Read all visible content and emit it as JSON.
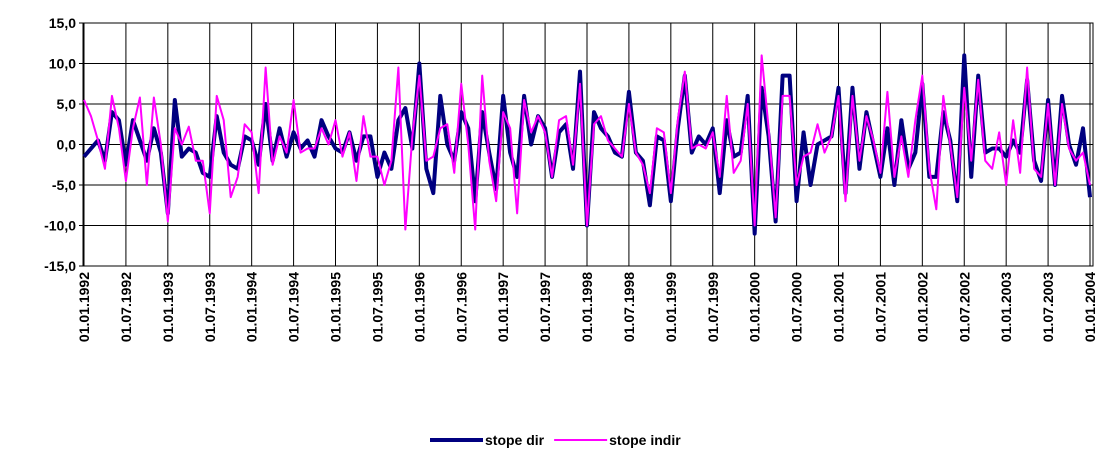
{
  "chart_data": {
    "type": "line",
    "categories": [
      "01.01.1992",
      null,
      null,
      null,
      null,
      null,
      "01.07.1992",
      null,
      null,
      null,
      null,
      null,
      "01.01.1993",
      null,
      null,
      null,
      null,
      null,
      "01.07.1993",
      null,
      null,
      null,
      null,
      null,
      "01.01.1994",
      null,
      null,
      null,
      null,
      null,
      "01.07.1994",
      null,
      null,
      null,
      null,
      null,
      "01.01.1995",
      null,
      null,
      null,
      null,
      null,
      "01.07.1995",
      null,
      null,
      null,
      null,
      null,
      "01.01.1996",
      null,
      null,
      null,
      null,
      null,
      "01.07.1996",
      null,
      null,
      null,
      null,
      null,
      "01.01.1997",
      null,
      null,
      null,
      null,
      null,
      "01.07.1997",
      null,
      null,
      null,
      null,
      null,
      "01.01.1998",
      null,
      null,
      null,
      null,
      null,
      "01.07.1998",
      null,
      null,
      null,
      null,
      null,
      "01.01.1999",
      null,
      null,
      null,
      null,
      null,
      "01.07.1999",
      null,
      null,
      null,
      null,
      null,
      "01.01.2000",
      null,
      null,
      null,
      null,
      null,
      "01.07.2000",
      null,
      null,
      null,
      null,
      null,
      "01.01.2001",
      null,
      null,
      null,
      null,
      null,
      "01.07.2001",
      null,
      null,
      null,
      null,
      null,
      "01.01.2002",
      null,
      null,
      null,
      null,
      null,
      "01.07.2002",
      null,
      null,
      null,
      null,
      null,
      "01.01.2003",
      null,
      null,
      null,
      null,
      null,
      "01.07.2003",
      null,
      null,
      null,
      null,
      null,
      "01.01.2004"
    ],
    "series": [
      {
        "name": "stope dir",
        "color": "#000080",
        "values": [
          -1.5,
          -0.5,
          0.5,
          -2,
          4,
          3,
          -2.5,
          3,
          0.5,
          -2,
          2,
          -1,
          -8.5,
          5.5,
          -1.5,
          -0.5,
          -1,
          -3.5,
          -4,
          3.5,
          -1,
          -2.5,
          -3,
          1,
          0.5,
          -2.5,
          5,
          -2,
          2,
          -1.5,
          1.5,
          -0.5,
          0.5,
          -1.5,
          3,
          1,
          -0.5,
          -1,
          1.5,
          -2,
          1,
          1,
          -4,
          -1,
          -3,
          3,
          4.5,
          -0.5,
          10,
          -3,
          -6,
          6,
          0,
          -2,
          4,
          2,
          -7,
          4,
          -1,
          -5.5,
          6,
          -1,
          -4,
          6,
          0,
          3.5,
          2,
          -4,
          1.5,
          2.5,
          -3,
          9,
          -10,
          4,
          2,
          1,
          -1,
          -1.5,
          6.5,
          -1,
          -2,
          -7.5,
          1,
          0.5,
          -7,
          2,
          8.5,
          -1,
          1,
          0,
          2,
          -6,
          3,
          -1.5,
          -1,
          6,
          -11,
          7,
          1,
          -9.5,
          8.5,
          8.5,
          -7,
          1.5,
          -5,
          0,
          0.5,
          1,
          7,
          -6,
          7,
          -3,
          4,
          0,
          -4,
          2,
          -5,
          3,
          -3,
          -1,
          7.5,
          -4,
          -4,
          4,
          0.5,
          -7,
          11,
          -4,
          8.5,
          -1,
          -0.5,
          -0.5,
          -1.5,
          0.5,
          -1,
          8,
          -2,
          -4.5,
          5.5,
          -5,
          6,
          0,
          -2.5,
          2,
          -6.5
        ]
      },
      {
        "name": "stope indir",
        "color": "#ff00ff",
        "values": [
          5.5,
          3.5,
          0.5,
          -3,
          6,
          2,
          -4.5,
          2,
          5.8,
          -5,
          5.8,
          0,
          -9.5,
          2,
          0,
          2.2,
          -2,
          -2,
          -8.5,
          6,
          3,
          -6.5,
          -4,
          2.5,
          1.5,
          -6,
          9.5,
          -2.5,
          1,
          -1,
          5.5,
          -1,
          -0.5,
          -0.5,
          2,
          0,
          3,
          -1.5,
          1.5,
          -4.5,
          3.5,
          -1.5,
          -1.5,
          -5,
          -2,
          9.5,
          -10.5,
          1,
          8.5,
          -2,
          -1.5,
          2,
          2.5,
          -3.5,
          7.5,
          0,
          -10.5,
          8.5,
          -2,
          -7,
          4,
          2,
          -8.5,
          5.5,
          1.5,
          3.5,
          1.5,
          -4,
          3,
          3.5,
          -2.5,
          7.5,
          -10,
          2.5,
          3.5,
          0.5,
          -0.5,
          -1.5,
          5,
          -1,
          -2.5,
          -6,
          2,
          1.5,
          -6,
          3,
          9,
          -0.5,
          0,
          -0.5,
          1.5,
          -4,
          6,
          -3.5,
          -2,
          5,
          -10,
          11,
          2,
          -9,
          6,
          6,
          -5,
          -1.5,
          -1,
          2.5,
          -1,
          1,
          6,
          -7,
          6,
          -2,
          3.5,
          0.5,
          -3.5,
          6.5,
          -4,
          1,
          -4,
          3,
          8.5,
          -3,
          -8,
          6,
          0,
          -6.5,
          7,
          -2,
          8,
          -2,
          -3,
          1.5,
          -5,
          3,
          -3.5,
          9.5,
          -3,
          -4,
          5,
          -5,
          5,
          -0.5,
          -2,
          -1,
          -5
        ]
      }
    ],
    "ylim": [
      -15,
      15
    ],
    "yticks": [
      {
        "value": -15,
        "label": "-15,0"
      },
      {
        "value": -10,
        "label": "-10,0"
      },
      {
        "value": -5,
        "label": "-5,0"
      },
      {
        "value": 0,
        "label": "0,0"
      },
      {
        "value": 5,
        "label": "5,0"
      },
      {
        "value": 10,
        "label": "10,0"
      },
      {
        "value": 15,
        "label": "15,0"
      }
    ],
    "grid": true,
    "legend": "bottom"
  }
}
